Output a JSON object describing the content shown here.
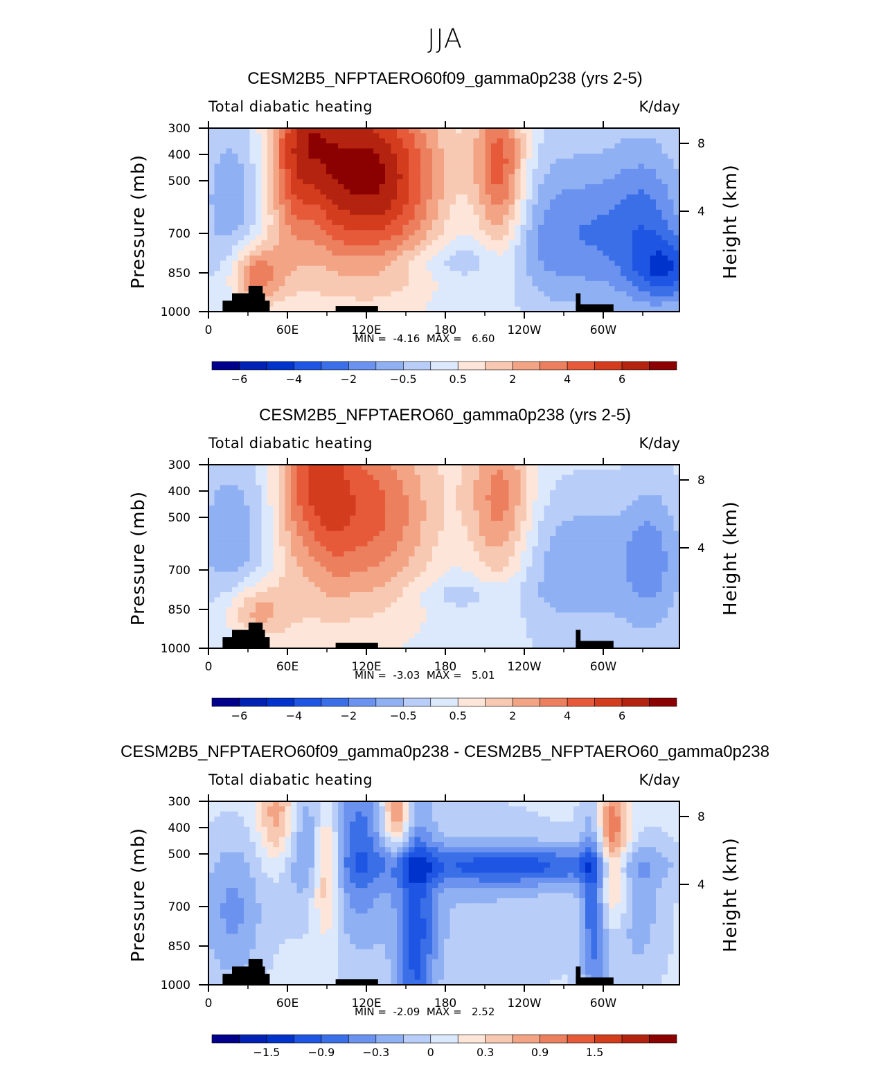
{
  "title": "JJA",
  "units": "K/day",
  "variable_label": "Total diabatic heating",
  "y_axis_label": "Pressure (mb)",
  "y2_axis_label": "Height (km)",
  "min_label": "MIN =",
  "max_label": "MAX =",
  "chart_data": [
    {
      "type": "heatmap",
      "title": "CESM2B5_NFPTAERO60f09_gamma0p238 (yrs 2-5)",
      "left_string": "Total diabatic heating",
      "right_string": "K/day",
      "ylabel": "Pressure (mb)",
      "y2label": "Height (km)",
      "x_ticks": [
        "0",
        "60E",
        "120E",
        "180",
        "120W",
        "60W"
      ],
      "y_ticks": [
        "300",
        "400",
        "500",
        "700",
        "850",
        "1000"
      ],
      "y2_ticks": [
        "8",
        "4"
      ],
      "min": "-4.16",
      "max": "6.60",
      "colorbar_labels": [
        "-6",
        "-4",
        "-2",
        "-0.5",
        "0.5",
        "2",
        "4",
        "6"
      ],
      "colors": [
        "#00008b",
        "#0022b4",
        "#0033cc",
        "#1f55e3",
        "#3a6fe8",
        "#6a92ee",
        "#8fb0f3",
        "#b8cdf7",
        "#dce8fb",
        "#fde6d9",
        "#f8c9b2",
        "#f2a485",
        "#ec7f5d",
        "#e65a3a",
        "#d43c1e",
        "#b3230f",
        "#8b0000"
      ]
    },
    {
      "type": "heatmap",
      "title": "CESM2B5_NFPTAERO60_gamma0p238 (yrs 2-5)",
      "left_string": "Total diabatic heating",
      "right_string": "K/day",
      "ylabel": "Pressure (mb)",
      "y2label": "Height (km)",
      "x_ticks": [
        "0",
        "60E",
        "120E",
        "180",
        "120W",
        "60W"
      ],
      "y_ticks": [
        "300",
        "400",
        "500",
        "700",
        "850",
        "1000"
      ],
      "y2_ticks": [
        "8",
        "4"
      ],
      "min": "-3.03",
      "max": "5.01",
      "colorbar_labels": [
        "-6",
        "-4",
        "-2",
        "-0.5",
        "0.5",
        "2",
        "4",
        "6"
      ],
      "colors": [
        "#00008b",
        "#0022b4",
        "#0033cc",
        "#1f55e3",
        "#3a6fe8",
        "#6a92ee",
        "#8fb0f3",
        "#b8cdf7",
        "#dce8fb",
        "#fde6d9",
        "#f8c9b2",
        "#f2a485",
        "#ec7f5d",
        "#e65a3a",
        "#d43c1e",
        "#b3230f",
        "#8b0000"
      ]
    },
    {
      "type": "heatmap",
      "title": "CESM2B5_NFPTAERO60f09_gamma0p238 - CESM2B5_NFPTAERO60_gamma0p238",
      "left_string": "Total diabatic heating",
      "right_string": "K/day",
      "ylabel": "Pressure (mb)",
      "y2label": "Height (km)",
      "x_ticks": [
        "0",
        "60E",
        "120E",
        "180",
        "120W",
        "60W"
      ],
      "y_ticks": [
        "300",
        "400",
        "500",
        "700",
        "850",
        "1000"
      ],
      "y2_ticks": [
        "8",
        "4"
      ],
      "min": "-2.09",
      "max": "2.52",
      "colorbar_labels": [
        "-1.5",
        "-0.9",
        "-0.3",
        "0",
        "0.3",
        "0.9",
        "1.5"
      ],
      "colors": [
        "#00008b",
        "#0022b4",
        "#0033cc",
        "#1f55e3",
        "#3a6fe8",
        "#6a92ee",
        "#8fb0f3",
        "#b8cdf7",
        "#dce8fb",
        "#fde6d9",
        "#f8c9b2",
        "#f2a485",
        "#ec7f5d",
        "#e65a3a",
        "#d43c1e",
        "#b3230f",
        "#8b0000"
      ]
    }
  ]
}
